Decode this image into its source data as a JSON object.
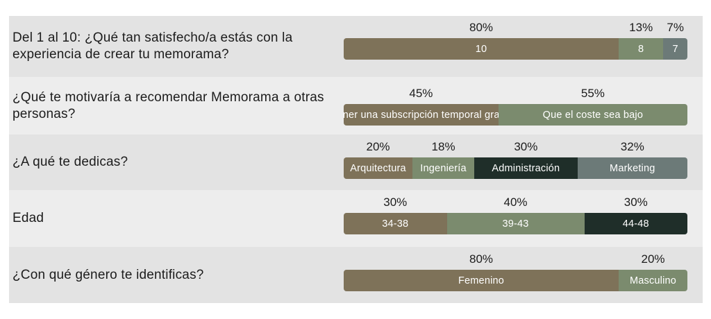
{
  "colors": {
    "brown": "#7e7259",
    "sage": "#7b8b6e",
    "dark_green": "#1f2e29",
    "slate": "#6c7a78"
  },
  "chart_data": {
    "type": "bar",
    "orientation": "horizontal-stacked-100",
    "rows": [
      {
        "question": "Del 1 al 10: ¿Qué tan satisfecho/a estás con la experiencia de crear tu memorama?",
        "segments": [
          {
            "label": "10",
            "value": 80,
            "value_label": "80%",
            "color": "brown"
          },
          {
            "label": "8",
            "value": 13,
            "value_label": "13%",
            "color": "sage"
          },
          {
            "label": "7",
            "value": 7,
            "value_label": "7%",
            "color": "slate"
          }
        ]
      },
      {
        "question": "¿Qué te motivaría a recomendar Memorama a otras personas?",
        "segments": [
          {
            "label": "Tener una subscripción temporal gratis",
            "value": 45,
            "value_label": "45%",
            "color": "brown"
          },
          {
            "label": "Que el coste sea bajo",
            "value": 55,
            "value_label": "55%",
            "color": "sage"
          }
        ]
      },
      {
        "question": "¿A qué te dedicas?",
        "segments": [
          {
            "label": "Arquitectura",
            "value": 20,
            "value_label": "20%",
            "color": "brown"
          },
          {
            "label": "Ingeniería",
            "value": 18,
            "value_label": "18%",
            "color": "sage"
          },
          {
            "label": "Administración",
            "value": 30,
            "value_label": "30%",
            "color": "dark_green"
          },
          {
            "label": "Marketing",
            "value": 32,
            "value_label": "32%",
            "color": "slate"
          }
        ]
      },
      {
        "question": "Edad",
        "segments": [
          {
            "label": "34-38",
            "value": 30,
            "value_label": "30%",
            "color": "brown"
          },
          {
            "label": "39-43",
            "value": 40,
            "value_label": "40%",
            "color": "sage"
          },
          {
            "label": "44-48",
            "value": 30,
            "value_label": "30%",
            "color": "dark_green"
          }
        ]
      },
      {
        "question": "¿Con qué género te identificas?",
        "segments": [
          {
            "label": "Femenino",
            "value": 80,
            "value_label": "80%",
            "color": "brown"
          },
          {
            "label": "Masculino",
            "value": 20,
            "value_label": "20%",
            "color": "sage"
          }
        ]
      }
    ]
  }
}
